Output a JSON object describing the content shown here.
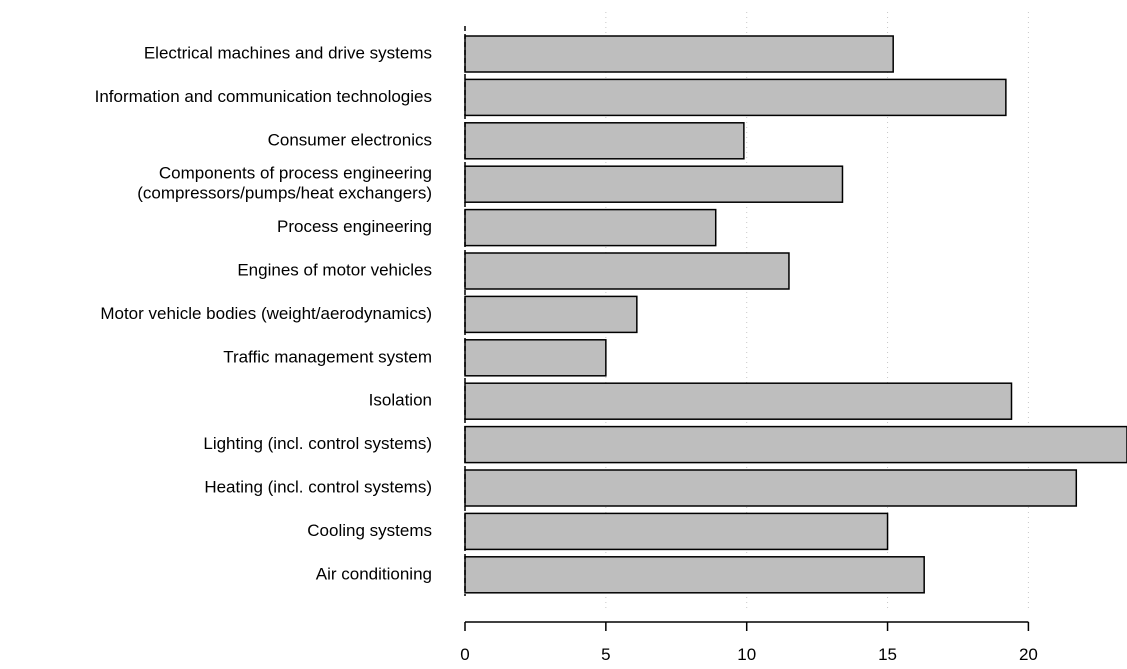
{
  "chart_data": {
    "type": "bar",
    "orientation": "horizontal",
    "categories": [
      [
        "Electrical machines and drive systems"
      ],
      [
        "Information and communication technologies"
      ],
      [
        "Consumer electronics"
      ],
      [
        "Components of process engineering",
        "(compressors/pumps/heat exchangers)"
      ],
      [
        "Process engineering"
      ],
      [
        "Engines of motor vehicles"
      ],
      [
        "Motor vehicle bodies (weight/aerodynamics)"
      ],
      [
        "Traffic management system"
      ],
      [
        "Isolation"
      ],
      [
        "Lighting (incl. control systems)"
      ],
      [
        "Heating (incl. control systems)"
      ],
      [
        "Cooling systems"
      ],
      [
        "Air conditioning"
      ]
    ],
    "values": [
      15.2,
      19.2,
      9.9,
      13.4,
      8.9,
      11.5,
      6.1,
      5.0,
      19.4,
      23.5,
      21.7,
      15.0,
      16.3
    ],
    "xlim": [
      0,
      23.5
    ],
    "x_ticks": [
      0,
      5,
      10,
      15,
      20
    ],
    "x_tick_labels": [
      "0",
      "5",
      "10",
      "15",
      "20"
    ],
    "title": "",
    "xlabel": "",
    "ylabel": "",
    "grid": "vertical dotted",
    "bar_color": "#bebebe",
    "bar_border_color": "#000000"
  }
}
